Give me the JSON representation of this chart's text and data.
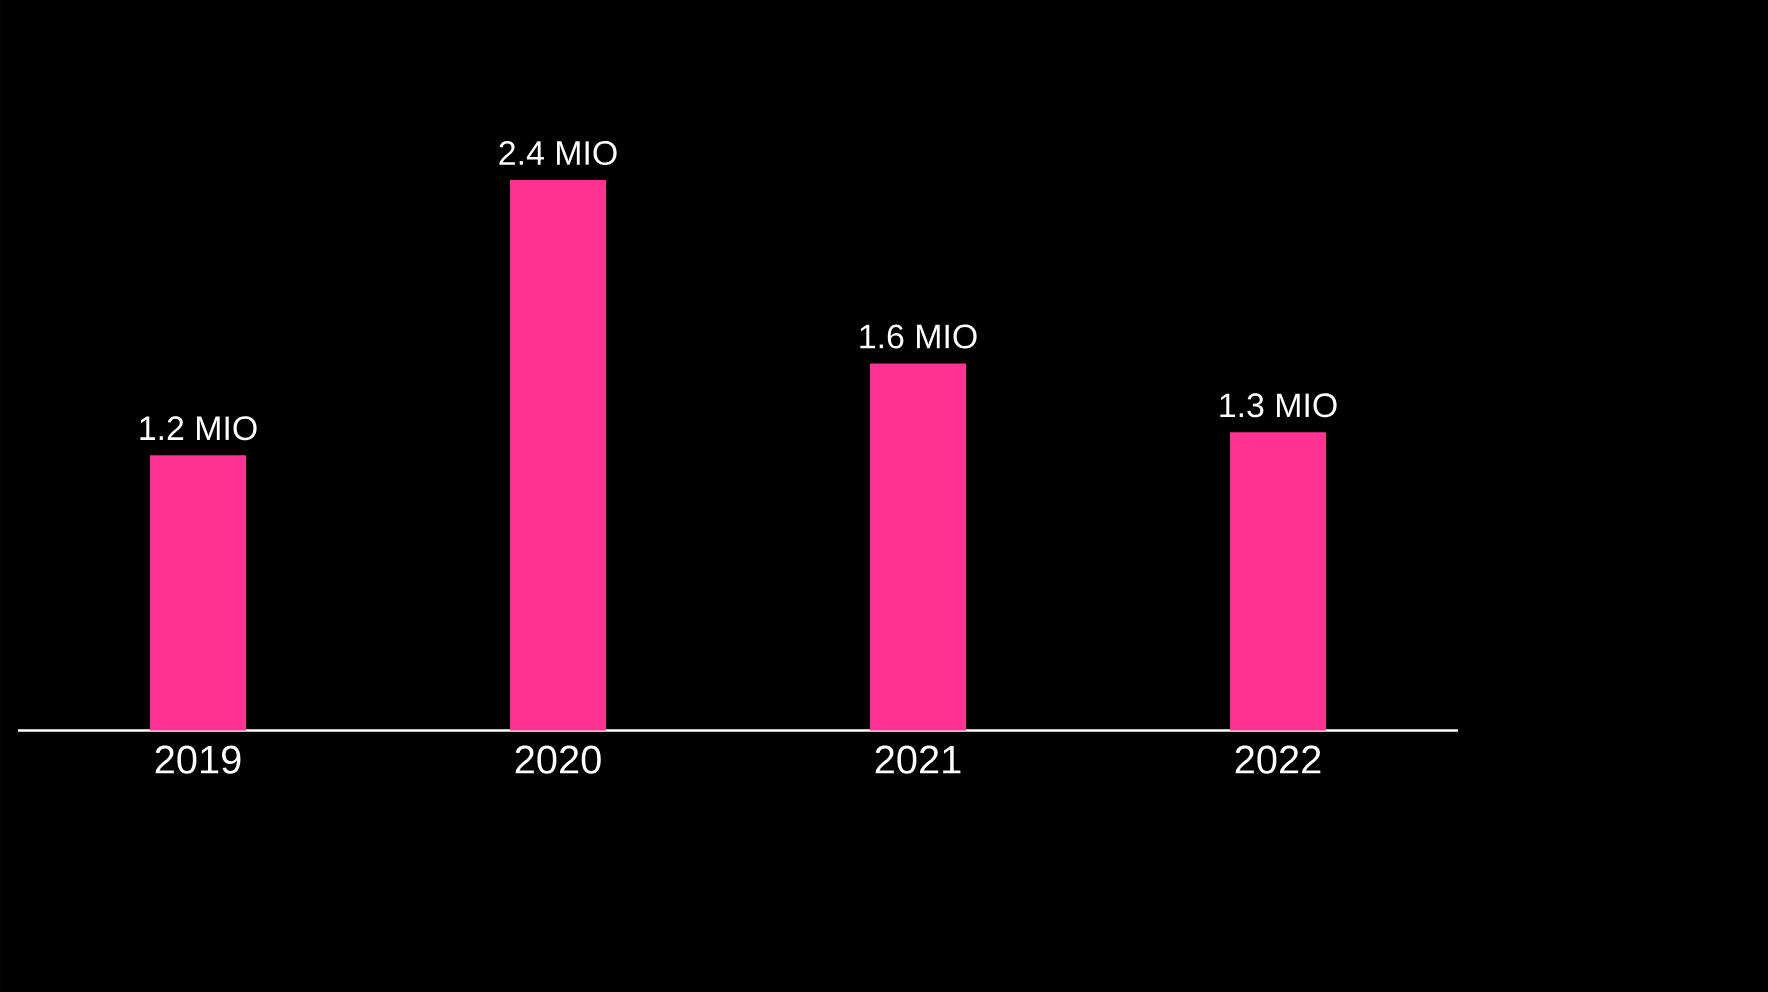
{
  "chart_data": {
    "type": "bar",
    "categories": [
      "2019",
      "2020",
      "2021",
      "2022"
    ],
    "values": [
      1.2,
      2.4,
      1.6,
      1.3
    ],
    "value_labels": [
      "1.2 MIO",
      "2.4 MIO",
      "1.6 MIO",
      "1.3 MIO"
    ],
    "color": "#fe3393"
  }
}
